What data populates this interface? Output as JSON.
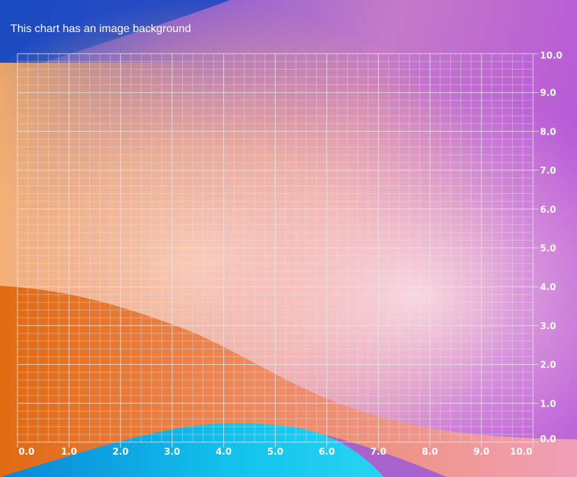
{
  "title": "This chart has an image background",
  "chart_data": {
    "type": "scatter",
    "title": "This chart has an image background",
    "xlabel": "",
    "ylabel": "",
    "xlim": [
      0,
      10
    ],
    "ylim": [
      0,
      10
    ],
    "x_ticks": [
      "0.0",
      "1.0",
      "2.0",
      "3.0",
      "4.0",
      "5.0",
      "6.0",
      "7.0",
      "8.0",
      "9.0",
      "10.0"
    ],
    "y_ticks": [
      "0.0",
      "1.0",
      "2.0",
      "3.0",
      "4.0",
      "5.0",
      "6.0",
      "7.0",
      "8.0",
      "9.0",
      "10.0"
    ],
    "minor_per_major": 5,
    "y_axis_position": "right",
    "grid": true,
    "grid_color": "#e6e6e6",
    "series": []
  },
  "colors": {
    "gradient": [
      "#1b4fc4",
      "#8e5ad0",
      "#e6a3c8",
      "#ffb36b",
      "#f7c8d8",
      "#b65ad6"
    ],
    "orange_wave": "#e9792a",
    "blue_wave": "#0fb4e8"
  }
}
